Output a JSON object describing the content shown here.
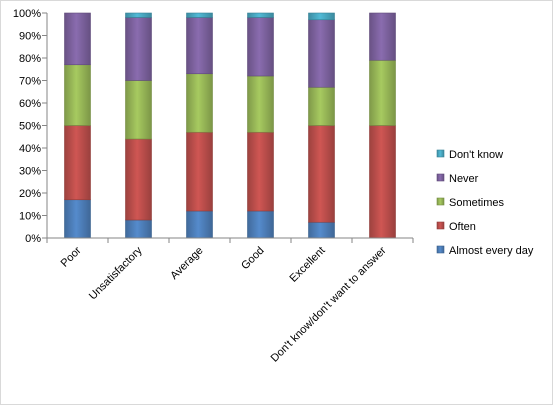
{
  "chart_data": {
    "type": "bar",
    "stacked": true,
    "percent_stacked": true,
    "categories": [
      "Poor",
      "Unsatisfactory",
      "Average",
      "Good",
      "Excellent",
      "Don't know/don't want to answer"
    ],
    "series": [
      {
        "name": "Almost every day",
        "color": "#4f81bd",
        "values": [
          17,
          8,
          12,
          12,
          7,
          0
        ]
      },
      {
        "name": "Often",
        "color": "#c0504d",
        "values": [
          33,
          36,
          35,
          35,
          43,
          50
        ]
      },
      {
        "name": "Sometimes",
        "color": "#9bbb59",
        "values": [
          27,
          26,
          26,
          25,
          17,
          29
        ]
      },
      {
        "name": "Never",
        "color": "#8064a2",
        "values": [
          23,
          28,
          25,
          26,
          30,
          21
        ]
      },
      {
        "name": "Don't know",
        "color": "#4bacc6",
        "values": [
          0,
          2,
          2,
          2,
          3,
          0
        ]
      }
    ],
    "y_ticks": [
      "0%",
      "10%",
      "20%",
      "30%",
      "40%",
      "50%",
      "60%",
      "70%",
      "80%",
      "90%",
      "100%"
    ],
    "ylim": [
      0,
      100
    ],
    "legend_position": "right",
    "grid": false,
    "title": "",
    "xlabel": "",
    "ylabel": ""
  }
}
